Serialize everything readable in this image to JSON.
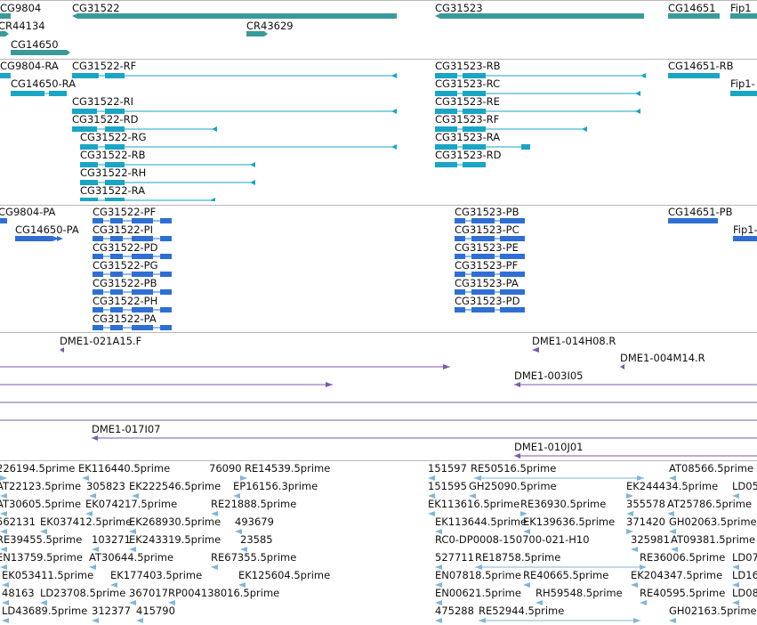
{
  "colors": {
    "gene": "#3a9a9a",
    "transcript": "#1aa5c4",
    "cds": "#2f6fd3",
    "clone": "#7a5ba8",
    "est": "#7fb6da"
  },
  "gene_track": {
    "labels": [
      {
        "id": "g1",
        "text": "CG9804"
      },
      {
        "id": "g2",
        "text": "CG31522"
      },
      {
        "id": "g3",
        "text": "CG31523"
      },
      {
        "id": "g4",
        "text": "CG14651"
      },
      {
        "id": "g5",
        "text": "Fip1"
      },
      {
        "id": "g6",
        "text": "CR44134"
      },
      {
        "id": "g7",
        "text": "CR43629"
      },
      {
        "id": "g8",
        "text": "CG14650"
      }
    ]
  },
  "transcript_track": {
    "labels": [
      {
        "id": "t1",
        "text": "CG9804-RA"
      },
      {
        "id": "t2",
        "text": "CG31522-RF"
      },
      {
        "id": "t3",
        "text": "CG31523-RB"
      },
      {
        "id": "t4",
        "text": "CG14651-RB"
      },
      {
        "id": "t5",
        "text": "CG14650-RA"
      },
      {
        "id": "t6",
        "text": "CG31523-RC"
      },
      {
        "id": "t7",
        "text": "Fip1-"
      },
      {
        "id": "t8",
        "text": "CG31522-RI"
      },
      {
        "id": "t9",
        "text": "CG31523-RE"
      },
      {
        "id": "t10",
        "text": "CG31522-RD"
      },
      {
        "id": "t11",
        "text": "CG31523-RF"
      },
      {
        "id": "t12",
        "text": "CG31522-RG"
      },
      {
        "id": "t13",
        "text": "CG31523-RA"
      },
      {
        "id": "t14",
        "text": "CG31522-RB"
      },
      {
        "id": "t15",
        "text": "CG31523-RD"
      },
      {
        "id": "t16",
        "text": "CG31522-RH"
      },
      {
        "id": "t17",
        "text": "CG31522-RA"
      }
    ]
  },
  "protein_track": {
    "labels": [
      {
        "id": "p1",
        "text": "CG9804-PA"
      },
      {
        "id": "p2",
        "text": "CG31522-PF"
      },
      {
        "id": "p3",
        "text": "CG31523-PB"
      },
      {
        "id": "p4",
        "text": "CG14651-PB"
      },
      {
        "id": "p5",
        "text": "CG14650-PA"
      },
      {
        "id": "p6",
        "text": "CG31522-PI"
      },
      {
        "id": "p7",
        "text": "CG31523-PC"
      },
      {
        "id": "p8",
        "text": "Fip1-"
      },
      {
        "id": "p9",
        "text": "CG31522-PD"
      },
      {
        "id": "p10",
        "text": "CG31523-PE"
      },
      {
        "id": "p11",
        "text": "CG31522-PG"
      },
      {
        "id": "p12",
        "text": "CG31523-PF"
      },
      {
        "id": "p13",
        "text": "CG31522-PB"
      },
      {
        "id": "p14",
        "text": "CG31523-PA"
      },
      {
        "id": "p15",
        "text": "CG31522-PH"
      },
      {
        "id": "p16",
        "text": "CG31523-PD"
      },
      {
        "id": "p17",
        "text": "CG31522-PA"
      }
    ]
  },
  "clone_track": {
    "labels": [
      {
        "id": "c1",
        "text": "DME1-021A15.F"
      },
      {
        "id": "c2",
        "text": "DME1-014H08.R"
      },
      {
        "id": "c3",
        "text": "DME1-004M14.R"
      },
      {
        "id": "c4",
        "text": "DME1-003I05"
      },
      {
        "id": "c5",
        "text": "DME1-017I07"
      },
      {
        "id": "c6",
        "text": "DME1-010J01"
      }
    ]
  },
  "est_track": {
    "labels": [
      {
        "id": "e1",
        "text": "226194.5prime"
      },
      {
        "id": "e2",
        "text": "EK116440.5prime"
      },
      {
        "id": "e3",
        "text": "76090"
      },
      {
        "id": "e4",
        "text": "RE14539.5prime"
      },
      {
        "id": "e5",
        "text": "151597"
      },
      {
        "id": "e6",
        "text": "RE50516.5prime"
      },
      {
        "id": "e7",
        "text": "AT08566.5prime"
      },
      {
        "id": "e8",
        "text": "AT22123.5prime"
      },
      {
        "id": "e9",
        "text": "305823"
      },
      {
        "id": "e10",
        "text": "EK222546.5prime"
      },
      {
        "id": "e11",
        "text": "EP16156.3prime"
      },
      {
        "id": "e12",
        "text": "151595"
      },
      {
        "id": "e13",
        "text": "GH25090.5prime"
      },
      {
        "id": "e14",
        "text": "EK244434.5prime"
      },
      {
        "id": "e15",
        "text": "LD05"
      },
      {
        "id": "e16",
        "text": "AT30605.5prime"
      },
      {
        "id": "e17",
        "text": "EK074217.5prime"
      },
      {
        "id": "e18",
        "text": "RE21888.5prime"
      },
      {
        "id": "e19",
        "text": "EK113616.5prime"
      },
      {
        "id": "e20",
        "text": "RE36930.5prime"
      },
      {
        "id": "e21",
        "text": "355578"
      },
      {
        "id": "e22",
        "text": "AT25786.5prime"
      },
      {
        "id": "e23",
        "text": "562131"
      },
      {
        "id": "e24",
        "text": "EK037412.5prime"
      },
      {
        "id": "e25",
        "text": "EK268930.5prime"
      },
      {
        "id": "e26",
        "text": "493679"
      },
      {
        "id": "e27",
        "text": "EK113644.5prime"
      },
      {
        "id": "e28",
        "text": "EK139636.5prime"
      },
      {
        "id": "e29",
        "text": "371420"
      },
      {
        "id": "e30",
        "text": "GH02063.5prime"
      },
      {
        "id": "e31",
        "text": "RE39455.5prime"
      },
      {
        "id": "e32",
        "text": "103271"
      },
      {
        "id": "e33",
        "text": "EK243319.5prime"
      },
      {
        "id": "e34",
        "text": "23585"
      },
      {
        "id": "e35",
        "text": "RC0-DP0008-150700-021-H10"
      },
      {
        "id": "e36",
        "text": "325981"
      },
      {
        "id": "e37",
        "text": "AT09381.5prime"
      },
      {
        "id": "e38",
        "text": "EN13759.5prime"
      },
      {
        "id": "e39",
        "text": "AT30644.5prime"
      },
      {
        "id": "e40",
        "text": "RE67355.5prime"
      },
      {
        "id": "e41",
        "text": "527711"
      },
      {
        "id": "e42",
        "text": "RE18758.5prime"
      },
      {
        "id": "e43",
        "text": "RE36006.5prime"
      },
      {
        "id": "e44",
        "text": "LD07"
      },
      {
        "id": "e45",
        "text": "EK053411.5prime"
      },
      {
        "id": "e46",
        "text": "EK177403.5prime"
      },
      {
        "id": "e47",
        "text": "EK125604.5prime"
      },
      {
        "id": "e48",
        "text": "EN07818.5prime"
      },
      {
        "id": "e49",
        "text": "RE40665.5prime"
      },
      {
        "id": "e50",
        "text": "EK204347.5prime"
      },
      {
        "id": "e51",
        "text": "LD16"
      },
      {
        "id": "e52",
        "text": "48163"
      },
      {
        "id": "e53",
        "text": "LD23708.5prime"
      },
      {
        "id": "e54",
        "text": "367017"
      },
      {
        "id": "e55",
        "text": "RP004138016.5prime"
      },
      {
        "id": "e56",
        "text": "EN00621.5prime"
      },
      {
        "id": "e57",
        "text": "RH59548.5prime"
      },
      {
        "id": "e58",
        "text": "RE40595.5prime"
      },
      {
        "id": "e59",
        "text": "LD08"
      },
      {
        "id": "e60",
        "text": "LD43689.5prime"
      },
      {
        "id": "e61",
        "text": "312377"
      },
      {
        "id": "e62",
        "text": "415790"
      },
      {
        "id": "e63",
        "text": "475288"
      },
      {
        "id": "e64",
        "text": "RE52944.5prime"
      },
      {
        "id": "e65",
        "text": "GH02163.5prime"
      }
    ]
  }
}
